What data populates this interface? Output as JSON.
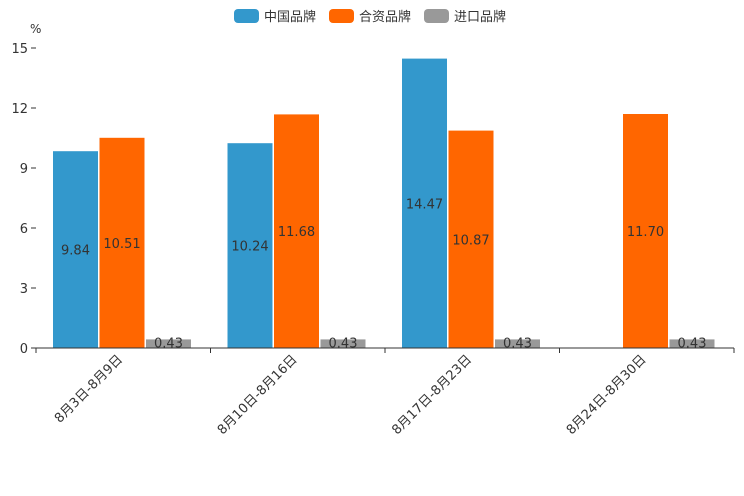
{
  "chart_data": {
    "type": "bar",
    "unit": "%",
    "categories": [
      "8月3日-8月9日",
      "8月10日-8月16日",
      "8月17日-8月23日",
      "8月24日-8月30日"
    ],
    "series": [
      {
        "name": "中国品牌",
        "color": "#3398CC",
        "values": [
          9.84,
          10.24,
          14.47,
          null
        ],
        "labels": [
          "9.84",
          "10.24",
          "14.47",
          ""
        ]
      },
      {
        "name": "合资品牌",
        "color": "#FF6600",
        "values": [
          10.51,
          11.68,
          10.87,
          11.7
        ],
        "labels": [
          "10.51",
          "11.68",
          "10.87",
          "11.70"
        ]
      },
      {
        "name": "进口品牌",
        "color": "#999999",
        "values": [
          0.43,
          0.43,
          0.43,
          0.43
        ],
        "labels": [
          "0.43",
          "0.43",
          "0.43",
          "0.43"
        ]
      }
    ],
    "yticks": [
      "0",
      "3",
      "6",
      "9",
      "12",
      "15"
    ],
    "ylim": [
      0,
      15
    ],
    "legend_position": "top-center"
  }
}
